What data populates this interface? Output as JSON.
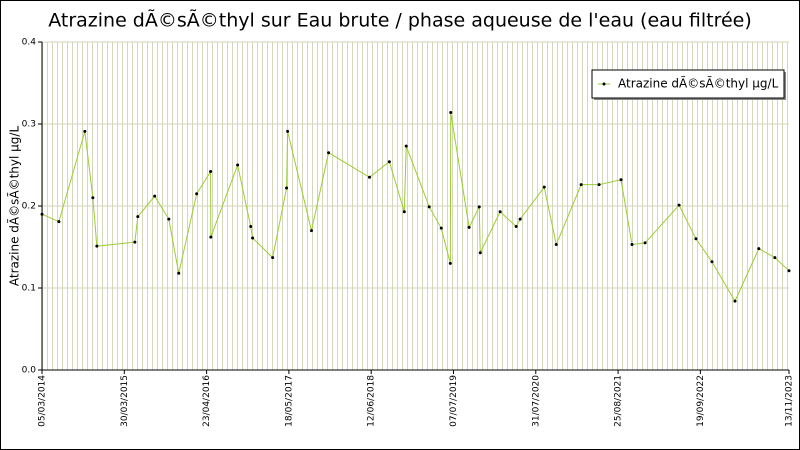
{
  "chart_data": {
    "type": "line",
    "title": "Atrazine dÃ©sÃ©thyl sur Eau brute / phase aqueuse de l'eau (eau filtrée)",
    "y_label": "Atrazine dÃ©sÃ©thyl µg/L",
    "x": [
      "2014-03-05",
      "2014-05-24",
      "2014-09-24",
      "2014-11-01",
      "2014-11-20",
      "2015-05-19",
      "2015-06-02",
      "2015-08-21",
      "2015-10-27",
      "2015-12-13",
      "2016-03-07",
      "2016-05-12",
      "2016-05-13",
      "2016-09-17",
      "2016-11-18",
      "2016-11-27",
      "2017-03-02",
      "2017-05-07",
      "2017-05-12",
      "2017-09-02",
      "2017-11-22",
      "2018-06-04",
      "2018-09-06",
      "2018-11-16",
      "2018-11-25",
      "2019-03-14",
      "2019-05-10",
      "2019-06-22",
      "2019-06-24",
      "2019-09-19",
      "2019-11-06",
      "2019-11-11",
      "2020-02-13",
      "2020-04-29",
      "2020-05-18",
      "2020-09-09",
      "2020-11-05",
      "2021-03-03",
      "2021-05-27",
      "2021-09-08",
      "2021-10-30",
      "2021-12-31",
      "2022-06-10",
      "2022-08-29",
      "2022-11-13",
      "2023-03-02",
      "2023-06-23",
      "2023-09-07",
      "2023-11-13"
    ],
    "series": [
      {
        "name": "Atrazine dÃ©sÃ©thyl µg/L",
        "color": "#9acd32",
        "marker_color": "#000000",
        "values": [
          0.19,
          0.181,
          0.291,
          0.21,
          0.151,
          0.156,
          0.187,
          0.212,
          0.184,
          0.118,
          0.215,
          0.242,
          0.162,
          0.25,
          0.175,
          0.161,
          0.137,
          0.222,
          0.291,
          0.17,
          0.265,
          0.235,
          0.254,
          0.193,
          0.273,
          0.199,
          0.173,
          0.13,
          0.314,
          0.174,
          0.199,
          0.143,
          0.193,
          0.175,
          0.184,
          0.223,
          0.153,
          0.226,
          0.226,
          0.232,
          0.153,
          0.155,
          0.201,
          0.16,
          0.132,
          0.084,
          0.148,
          0.137,
          0.121
        ]
      }
    ],
    "xlim": [
      "2014-03-05",
      "2023-11-13"
    ],
    "xticks": [
      {
        "value": "2014-03-05",
        "label": "05/03/2014"
      },
      {
        "value": "2015-03-30",
        "label": "30/03/2015"
      },
      {
        "value": "2016-04-23",
        "label": "23/04/2016"
      },
      {
        "value": "2017-05-18",
        "label": "18/05/2017"
      },
      {
        "value": "2018-06-12",
        "label": "12/06/2018"
      },
      {
        "value": "2019-07-07",
        "label": "07/07/2019"
      },
      {
        "value": "2020-07-31",
        "label": "31/07/2020"
      },
      {
        "value": "2021-08-25",
        "label": "25/08/2021"
      },
      {
        "value": "2022-09-19",
        "label": "19/09/2022"
      },
      {
        "value": "2023-11-13",
        "label": "13/11/2023"
      }
    ],
    "ylim": [
      0,
      0.4
    ],
    "yticks": [
      {
        "value": 0,
        "label": "0.0"
      },
      0.1,
      0.2,
      0.3,
      0.4
    ],
    "grid": true,
    "legend": "upper right"
  }
}
